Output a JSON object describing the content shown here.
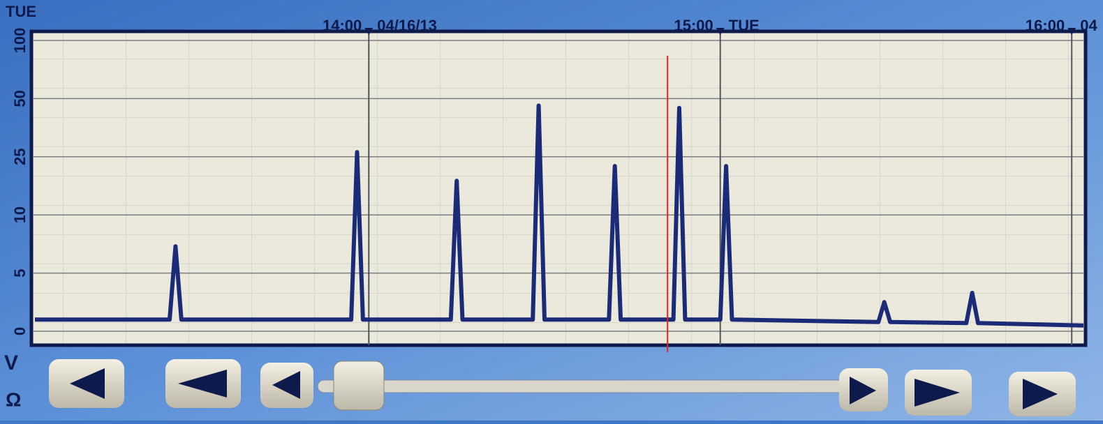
{
  "chart_data": {
    "type": "line",
    "corner_label": "TUE",
    "x": [
      "13:03",
      "13:26",
      "13:27",
      "13:28",
      "13:57",
      "13:58",
      "13:59",
      "14:14",
      "14:15",
      "14:16",
      "14:28",
      "14:29",
      "14:30",
      "14:41",
      "14:42",
      "14:43",
      "14:52",
      "14:53",
      "14:54",
      "15:00",
      "15:01",
      "15:02",
      "15:27",
      "15:28",
      "15:29",
      "15:42",
      "15:43",
      "15:44",
      "16:02"
    ],
    "values": [
      1,
      1,
      7.3,
      1,
      1,
      27,
      1,
      1,
      18.8,
      1,
      1,
      47,
      1,
      1,
      22.6,
      1,
      1,
      46,
      1,
      1,
      22.6,
      1,
      0.8,
      2.5,
      0.8,
      0.7,
      3.3,
      0.7,
      0.5
    ],
    "color": "#1c2b78",
    "xlim": [
      "13:03",
      "16:02"
    ],
    "xticks": [
      "14:00",
      "15:00",
      "16:00"
    ],
    "xtick_notes": [
      "04/16/13",
      "TUE",
      "04"
    ],
    "ylim": [
      0,
      100
    ],
    "yticks": [
      0,
      5,
      10,
      25,
      50,
      100
    ],
    "cursor": "14:51",
    "cursor_color": "#e0261c",
    "grid": true
  },
  "ui": {
    "units": [
      "V",
      "Ω"
    ]
  }
}
